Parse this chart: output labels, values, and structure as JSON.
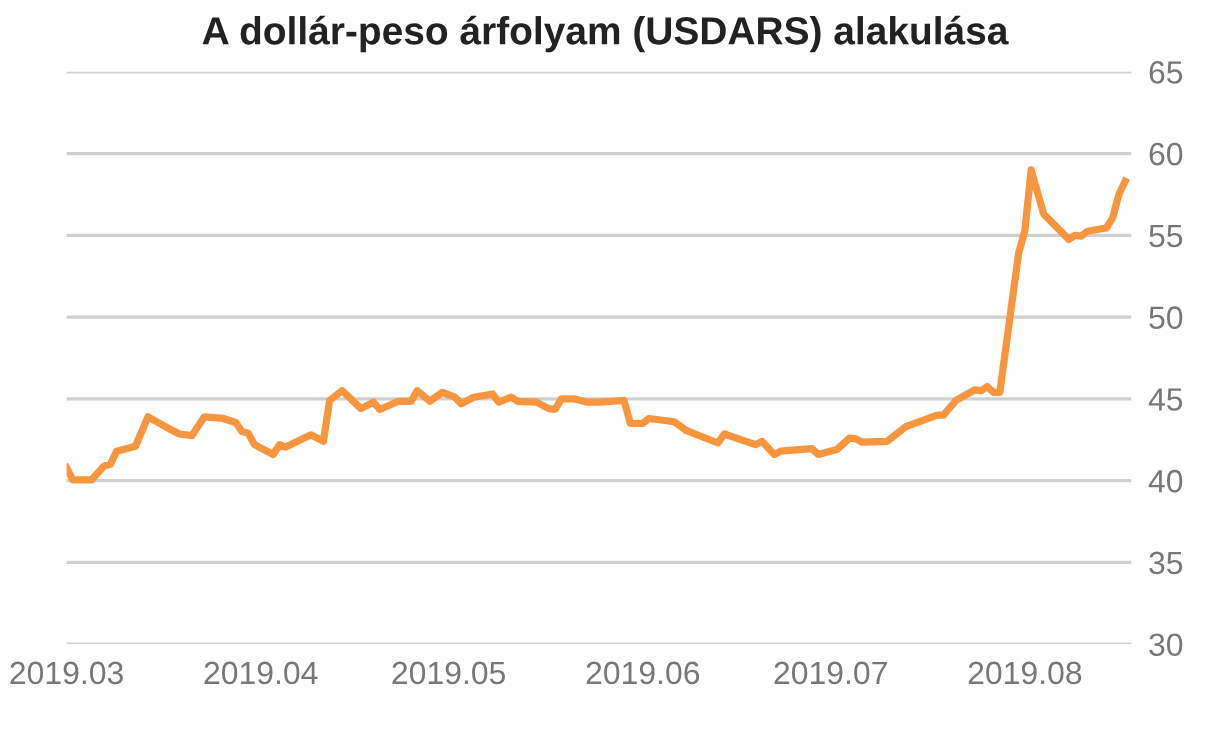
{
  "chart_data": {
    "type": "line",
    "title": "A dollár-peso árfolyam (USDARS) alakulása",
    "x": [
      "2019-03-01",
      "2019-03-02",
      "2019-03-05",
      "2019-03-07",
      "2019-03-08",
      "2019-03-09",
      "2019-03-12",
      "2019-03-14",
      "2019-03-17",
      "2019-03-19",
      "2019-03-21",
      "2019-03-23",
      "2019-03-26",
      "2019-03-28",
      "2019-03-29",
      "2019-03-30",
      "2019-03-31",
      "2019-04-03",
      "2019-04-04",
      "2019-04-05",
      "2019-04-09",
      "2019-04-11",
      "2019-04-12",
      "2019-04-14",
      "2019-04-17",
      "2019-04-19",
      "2019-04-20",
      "2019-04-23",
      "2019-04-25",
      "2019-04-26",
      "2019-04-28",
      "2019-04-30",
      "2019-05-02",
      "2019-05-03",
      "2019-05-05",
      "2019-05-08",
      "2019-05-09",
      "2019-05-11",
      "2019-05-12",
      "2019-05-15",
      "2019-05-17",
      "2019-05-18",
      "2019-05-19",
      "2019-05-21",
      "2019-05-23",
      "2019-05-25",
      "2019-05-29",
      "2019-05-30",
      "2019-06-01",
      "2019-06-02",
      "2019-06-06",
      "2019-06-08",
      "2019-06-13",
      "2019-06-14",
      "2019-06-19",
      "2019-06-20",
      "2019-06-22",
      "2019-06-23",
      "2019-06-28",
      "2019-06-29",
      "2019-07-02",
      "2019-07-04",
      "2019-07-05",
      "2019-07-06",
      "2019-07-10",
      "2019-07-13",
      "2019-07-18",
      "2019-07-19",
      "2019-07-21",
      "2019-07-24",
      "2019-07-25",
      "2019-07-26",
      "2019-07-27",
      "2019-07-28",
      "2019-07-31",
      "2019-08-01",
      "2019-08-02",
      "2019-08-04",
      "2019-08-07",
      "2019-08-08",
      "2019-08-09",
      "2019-08-10",
      "2019-08-11",
      "2019-08-14",
      "2019-08-15",
      "2019-08-16",
      "2019-08-17"
    ],
    "series": [
      {
        "color": "#f7963f",
        "values": [
          40.8,
          40.05,
          40.05,
          40.9,
          41.0,
          41.8,
          42.1,
          43.9,
          43.25,
          42.85,
          42.75,
          43.9,
          43.8,
          43.55,
          43.0,
          42.9,
          42.2,
          41.6,
          42.2,
          42.05,
          42.8,
          42.4,
          44.9,
          45.5,
          44.4,
          44.8,
          44.35,
          44.85,
          44.85,
          45.5,
          44.85,
          45.4,
          45.1,
          44.7,
          45.1,
          45.3,
          44.8,
          45.1,
          44.85,
          44.8,
          44.4,
          44.35,
          45.0,
          45.0,
          44.8,
          44.8,
          44.9,
          43.5,
          43.5,
          43.8,
          43.6,
          43.05,
          42.3,
          42.85,
          42.2,
          42.4,
          41.6,
          41.8,
          41.95,
          41.6,
          41.9,
          42.6,
          42.55,
          42.35,
          42.4,
          43.3,
          44.0,
          44.0,
          44.9,
          45.55,
          45.5,
          45.75,
          45.4,
          45.4,
          53.9,
          55.3,
          59.0,
          56.3,
          55.15,
          54.75,
          55.0,
          54.95,
          55.25,
          55.45,
          56.05,
          57.5,
          58.3
        ]
      }
    ],
    "xlim": [
      "2019-03-01",
      "2019-08-18"
    ],
    "xticks": [
      {
        "value": "2019-03-01",
        "label": "2019.03"
      },
      {
        "value": "2019-04-01",
        "label": "2019.04"
      },
      {
        "value": "2019-05-01",
        "label": "2019.05"
      },
      {
        "value": "2019-06-01",
        "label": "2019.06"
      },
      {
        "value": "2019-07-01",
        "label": "2019.07"
      },
      {
        "value": "2019-08-01",
        "label": "2019.08"
      }
    ],
    "ylim": [
      30,
      65
    ],
    "yticks": [
      30,
      35,
      40,
      45,
      50,
      55,
      60,
      65
    ],
    "grid": "y",
    "marker": "none",
    "line_style": "solid"
  }
}
